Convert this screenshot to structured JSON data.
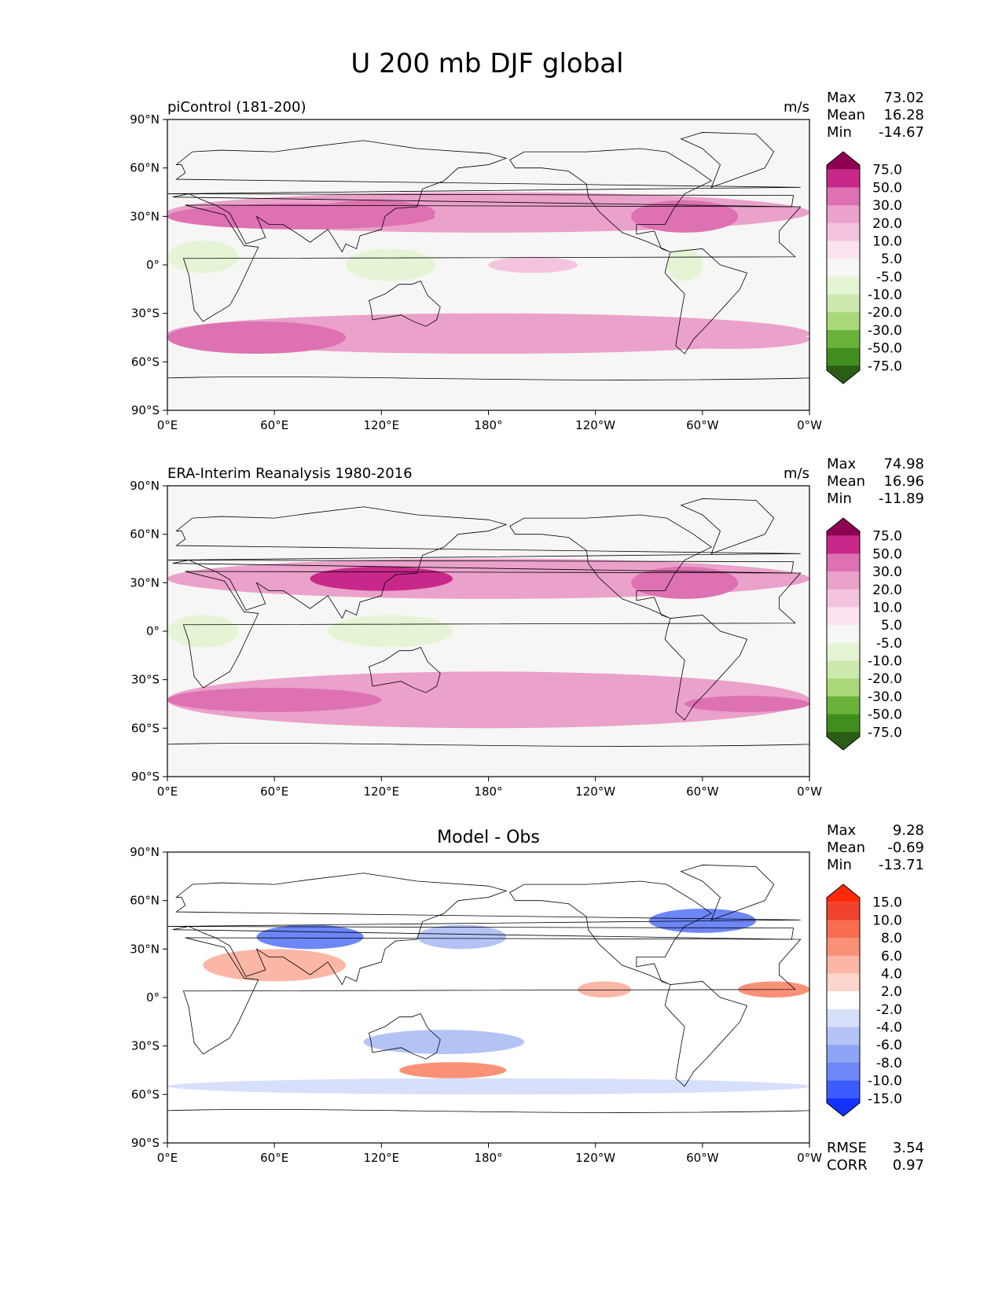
{
  "figure": {
    "title": "U 200 mb DJF global"
  },
  "colors": {
    "land_outline": "#000000",
    "absolute_palette": [
      "#2a5e14",
      "#3f8e1e",
      "#6bb23a",
      "#a8d878",
      "#cbe9ac",
      "#e6f4d6",
      "#f6f6f4",
      "#fbe3ef",
      "#f4c4de",
      "#eaa1ca",
      "#dd71b2",
      "#c7288a",
      "#8e0152"
    ],
    "difference_palette": [
      "#1432ff",
      "#3d5cff",
      "#6d86f8",
      "#8ea4f4",
      "#b3c3f6",
      "#d7e0fa",
      "#ffffff",
      "#fcd6cd",
      "#fbb6a6",
      "#fa9177",
      "#f66d4f",
      "#f1432b",
      "#ff2a0a"
    ]
  },
  "axes": {
    "xticks": [
      "0°E",
      "60°E",
      "120°E",
      "180°",
      "120°W",
      "60°W",
      "0°W"
    ],
    "yticks": [
      "90°N",
      "60°N",
      "30°N",
      "0°",
      "30°S",
      "60°S",
      "90°S"
    ]
  },
  "chart_data": [
    {
      "type": "heatmap",
      "title": "piControl (181-200)",
      "units": "m/s",
      "stats": [
        {
          "label": "Max",
          "value": "73.02"
        },
        {
          "label": "Mean",
          "value": "16.28"
        },
        {
          "label": "Min",
          "value": "-14.67"
        }
      ],
      "colorbar": {
        "labels": [
          "75.0",
          "50.0",
          "30.0",
          "20.0",
          "10.0",
          "5.0",
          "-5.0",
          "-10.0",
          "-20.0",
          "-30.0",
          "-50.0",
          "-75.0"
        ],
        "palette": "absolute",
        "extend": "both"
      },
      "xlim": [
        0,
        360
      ],
      "ylim": [
        -90,
        90
      ],
      "features": [
        {
          "lat": [
            20,
            45
          ],
          "lon": [
            0,
            360
          ],
          "v": 22
        },
        {
          "lat": [
            -30,
            -55
          ],
          "lon": [
            0,
            360
          ],
          "v": 22
        },
        {
          "lat": [
            22,
            38
          ],
          "lon": [
            0,
            150
          ],
          "v": 40
        },
        {
          "lat": [
            25,
            40
          ],
          "lon": [
            80,
            150
          ],
          "v": 48
        },
        {
          "lat": [
            20,
            40
          ],
          "lon": [
            260,
            320
          ],
          "v": 32
        },
        {
          "lat": [
            -35,
            -55
          ],
          "lon": [
            0,
            100
          ],
          "v": 30
        },
        {
          "lat": [
            -40,
            -52
          ],
          "lon": [
            270,
            360
          ],
          "v": 28
        },
        {
          "lat": [
            -5,
            15
          ],
          "lon": [
            0,
            40
          ],
          "v": -8
        },
        {
          "lat": [
            -10,
            10
          ],
          "lon": [
            100,
            150
          ],
          "v": -8
        },
        {
          "lat": [
            -10,
            10
          ],
          "lon": [
            280,
            300
          ],
          "v": -6
        },
        {
          "lat": [
            -5,
            5
          ],
          "lon": [
            180,
            230
          ],
          "v": 18
        }
      ]
    },
    {
      "type": "heatmap",
      "title": "ERA-Interim Reanalysis 1980-2016",
      "units": "m/s",
      "stats": [
        {
          "label": "Max",
          "value": "74.98"
        },
        {
          "label": "Mean",
          "value": "16.96"
        },
        {
          "label": "Min",
          "value": "-11.89"
        }
      ],
      "colorbar": {
        "labels": [
          "75.0",
          "50.0",
          "30.0",
          "20.0",
          "10.0",
          "5.0",
          "-5.0",
          "-10.0",
          "-20.0",
          "-30.0",
          "-50.0",
          "-75.0"
        ],
        "palette": "absolute",
        "extend": "both"
      },
      "xlim": [
        0,
        360
      ],
      "ylim": [
        -90,
        90
      ],
      "features": [
        {
          "lat": [
            20,
            45
          ],
          "lon": [
            0,
            360
          ],
          "v": 22
        },
        {
          "lat": [
            -25,
            -60
          ],
          "lon": [
            0,
            360
          ],
          "v": 20
        },
        {
          "lat": [
            25,
            40
          ],
          "lon": [
            80,
            160
          ],
          "v": 50
        },
        {
          "lat": [
            20,
            40
          ],
          "lon": [
            260,
            320
          ],
          "v": 35
        },
        {
          "lat": [
            -35,
            -50
          ],
          "lon": [
            0,
            120
          ],
          "v": 30
        },
        {
          "lat": [
            -40,
            -50
          ],
          "lon": [
            290,
            360
          ],
          "v": 30
        },
        {
          "lat": [
            -10,
            10
          ],
          "lon": [
            0,
            40
          ],
          "v": -8
        },
        {
          "lat": [
            -10,
            10
          ],
          "lon": [
            90,
            160
          ],
          "v": -9
        }
      ]
    },
    {
      "type": "heatmap",
      "title": "Model - Obs",
      "stats": [
        {
          "label": "Max",
          "value": "9.28"
        },
        {
          "label": "Mean",
          "value": "-0.69"
        },
        {
          "label": "Min",
          "value": "-13.71"
        }
      ],
      "metrics": [
        {
          "label": "RMSE",
          "value": "3.54"
        },
        {
          "label": "CORR",
          "value": "0.97"
        }
      ],
      "colorbar": {
        "labels": [
          "15.0",
          "10.0",
          "8.0",
          "6.0",
          "4.0",
          "2.0",
          "-2.0",
          "-4.0",
          "-6.0",
          "-8.0",
          "-10.0",
          "-15.0"
        ],
        "palette": "difference",
        "extend": "both"
      },
      "xlim": [
        0,
        360
      ],
      "ylim": [
        -90,
        90
      ],
      "features": [
        {
          "lat": [
            30,
            45
          ],
          "lon": [
            50,
            110
          ],
          "v": -9
        },
        {
          "lat": [
            30,
            45
          ],
          "lon": [
            140,
            190
          ],
          "v": -6
        },
        {
          "lat": [
            40,
            55
          ],
          "lon": [
            270,
            330
          ],
          "v": -9
        },
        {
          "lat": [
            10,
            30
          ],
          "lon": [
            20,
            100
          ],
          "v": 5
        },
        {
          "lat": [
            -40,
            -50
          ],
          "lon": [
            130,
            190
          ],
          "v": 6
        },
        {
          "lat": [
            -20,
            -35
          ],
          "lon": [
            110,
            200
          ],
          "v": -5
        },
        {
          "lat": [
            -50,
            -60
          ],
          "lon": [
            0,
            360
          ],
          "v": -3
        },
        {
          "lat": [
            0,
            10
          ],
          "lon": [
            230,
            260
          ],
          "v": 5
        },
        {
          "lat": [
            0,
            10
          ],
          "lon": [
            320,
            360
          ],
          "v": 6
        }
      ]
    }
  ]
}
